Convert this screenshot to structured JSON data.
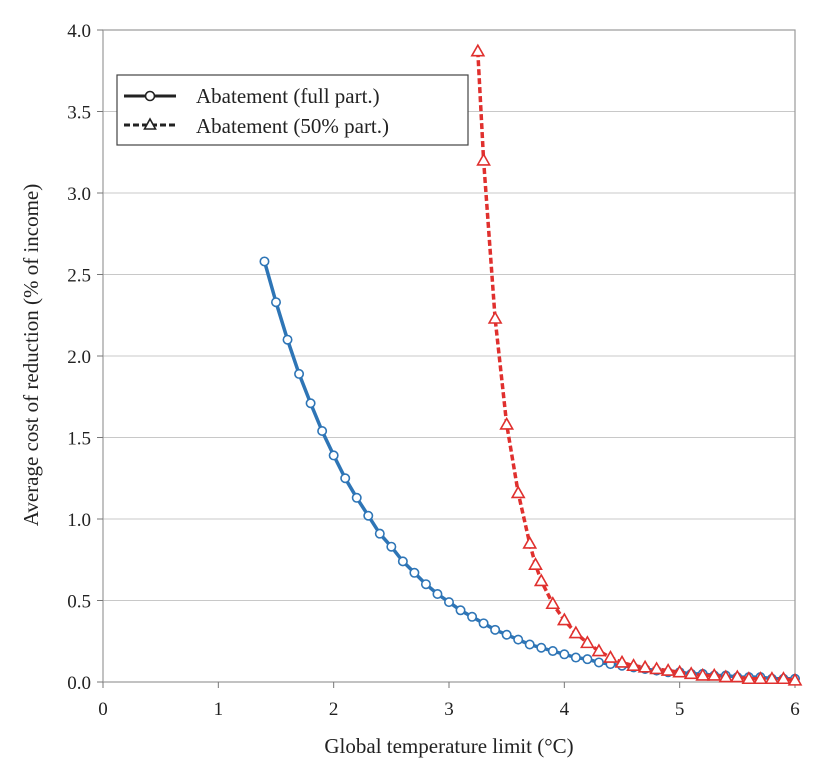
{
  "chart_data": {
    "type": "line",
    "xlabel": "Global temperature limit (°C)",
    "ylabel": "Average cost of reduction (% of income)",
    "xlim": [
      0,
      6
    ],
    "ylim": [
      0,
      4
    ],
    "x_ticks": [
      "0",
      "1",
      "2",
      "3",
      "4",
      "5",
      "6"
    ],
    "y_ticks": [
      "0.0",
      "0.5",
      "1.0",
      "1.5",
      "2.0",
      "2.5",
      "3.0",
      "3.5",
      "4.0"
    ],
    "grid": "horizontal",
    "legend_position": "top-left",
    "series": [
      {
        "name": "Abatement (full part.)",
        "line_style": "solid",
        "marker": "circle",
        "color": "#2E75B6",
        "x": [
          1.4,
          1.5,
          1.6,
          1.7,
          1.8,
          1.9,
          2.0,
          2.1,
          2.2,
          2.3,
          2.4,
          2.5,
          2.6,
          2.7,
          2.8,
          2.9,
          3.0,
          3.1,
          3.2,
          3.3,
          3.4,
          3.5,
          3.6,
          3.7,
          3.8,
          3.9,
          4.0,
          4.1,
          4.2,
          4.3,
          4.4,
          4.5,
          4.6,
          4.7,
          4.8,
          4.9,
          5.0,
          5.1,
          5.2,
          5.3,
          5.4,
          5.5,
          5.6,
          5.7,
          5.8,
          5.9,
          6.0
        ],
        "y": [
          2.58,
          2.33,
          2.1,
          1.89,
          1.71,
          1.54,
          1.39,
          1.25,
          1.13,
          1.02,
          0.91,
          0.83,
          0.74,
          0.67,
          0.6,
          0.54,
          0.49,
          0.44,
          0.4,
          0.36,
          0.32,
          0.29,
          0.26,
          0.23,
          0.21,
          0.19,
          0.17,
          0.15,
          0.14,
          0.12,
          0.11,
          0.1,
          0.09,
          0.08,
          0.07,
          0.06,
          0.06,
          0.05,
          0.05,
          0.04,
          0.04,
          0.03,
          0.03,
          0.03,
          0.02,
          0.02,
          0.02
        ]
      },
      {
        "name": "Abatement (50% part.)",
        "line_style": "dashed",
        "marker": "triangle",
        "color": "#E0302E",
        "x": [
          3.25,
          3.3,
          3.4,
          3.5,
          3.6,
          3.7,
          3.75,
          3.8,
          3.9,
          4.0,
          4.1,
          4.2,
          4.3,
          4.4,
          4.5,
          4.6,
          4.7,
          4.8,
          4.9,
          5.0,
          5.1,
          5.2,
          5.3,
          5.4,
          5.5,
          5.6,
          5.7,
          5.8,
          5.9,
          6.0
        ],
        "y": [
          3.87,
          3.2,
          2.23,
          1.58,
          1.16,
          0.85,
          0.72,
          0.62,
          0.48,
          0.38,
          0.3,
          0.24,
          0.19,
          0.15,
          0.12,
          0.1,
          0.09,
          0.08,
          0.07,
          0.06,
          0.05,
          0.04,
          0.04,
          0.03,
          0.03,
          0.02,
          0.02,
          0.02,
          0.02,
          0.01
        ]
      }
    ]
  }
}
